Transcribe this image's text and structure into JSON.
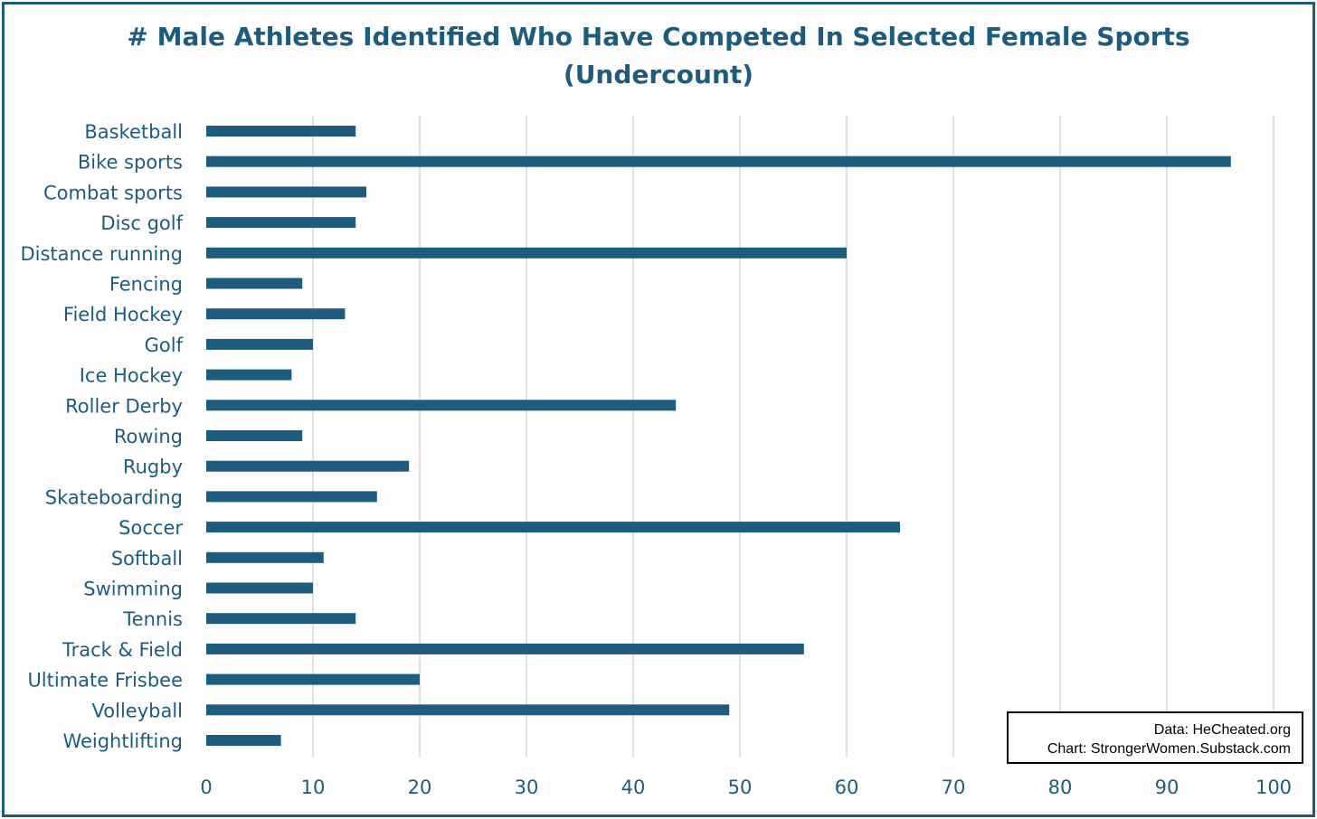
{
  "chart_data": {
    "type": "bar",
    "orientation": "horizontal",
    "title_line1": "# Male Athletes Identified Who Have Competed In Selected Female Sports",
    "title_line2": "(Undercount)",
    "xlabel": "",
    "ylabel": "",
    "xlim": [
      0,
      100
    ],
    "ticks": [
      0,
      10,
      20,
      30,
      40,
      50,
      60,
      70,
      80,
      90,
      100
    ],
    "grid": true,
    "bar_color": "#1d5c7e",
    "categories": [
      "Basketball",
      "Bike sports",
      "Combat sports",
      "Disc golf",
      "Distance running",
      "Fencing",
      "Field Hockey",
      "Golf",
      "Ice Hockey",
      "Roller Derby",
      "Rowing",
      "Rugby",
      "Skateboarding",
      "Soccer",
      "Softball",
      "Swimming",
      "Tennis",
      "Track & Field",
      "Ultimate Frisbee",
      "Volleyball",
      "Weightlifting"
    ],
    "values": [
      14,
      96,
      15,
      14,
      60,
      9,
      13,
      10,
      8,
      44,
      9,
      19,
      16,
      65,
      11,
      10,
      14,
      56,
      20,
      49,
      7
    ]
  },
  "credit": {
    "data_line": "Data: HeCheated.org",
    "chart_line": "Chart: StrongerWomen.Substack.com"
  },
  "colors": {
    "accent": "#1d5c7e",
    "grid": "#d9d9d9"
  }
}
